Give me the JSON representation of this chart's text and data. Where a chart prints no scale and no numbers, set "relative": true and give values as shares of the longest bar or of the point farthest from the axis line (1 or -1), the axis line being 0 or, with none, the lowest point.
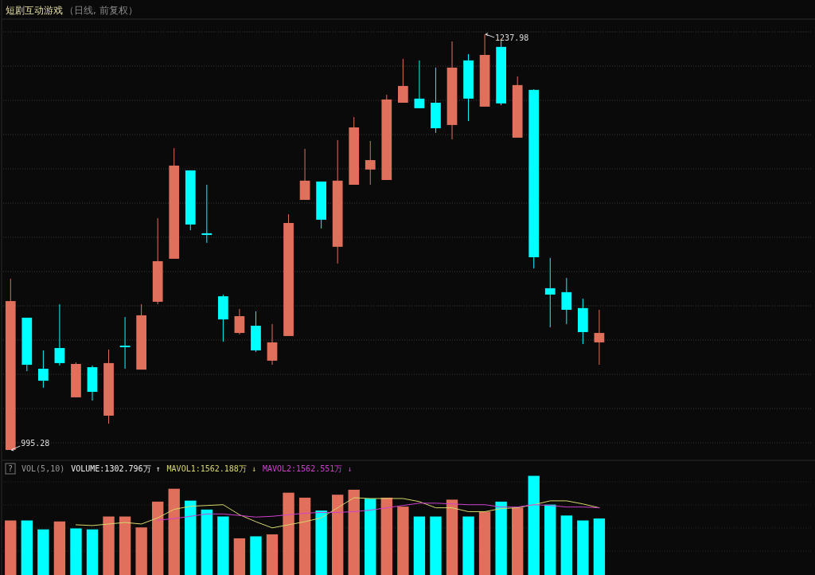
{
  "chart_data": [
    {
      "type": "candlestick",
      "title": "短剧互动游戏",
      "subtitle": "（日线, 前复权）",
      "grid": true,
      "categories": [
        null,
        null,
        null,
        null,
        null,
        null,
        null,
        null,
        null,
        null,
        null,
        null,
        null,
        null,
        null,
        null,
        null,
        null,
        null,
        null,
        null,
        null,
        null,
        null,
        null,
        null,
        null,
        null,
        null,
        null,
        null,
        null,
        null,
        null,
        null,
        null,
        null
      ],
      "ohlc": [
        [
          995.28,
          1095.3,
          995.28,
          1082.2
        ],
        [
          1072.5,
          1072.5,
          1041.3,
          1045.0
        ],
        [
          1042.7,
          1053.4,
          1031.6,
          1035.7
        ],
        [
          1054.8,
          1080.4,
          1044.6,
          1046.0
        ],
        [
          1026.0,
          1046.4,
          1026.0,
          1045.5
        ],
        [
          1043.6,
          1044.6,
          1024.1,
          1029.2
        ],
        [
          1015.3,
          1053.9,
          1010.6,
          1046.0
        ],
        [
          1056.2,
          1072.9,
          1042.7,
          1055.3
        ],
        [
          1042.2,
          1080.4,
          1042.2,
          1073.9
        ],
        [
          1081.8,
          1130.6,
          1080.4,
          1105.5
        ],
        [
          1106.9,
          1171.5,
          1106.9,
          1161.3
        ],
        [
          1158.5,
          1158.5,
          1123.6,
          1126.9
        ],
        [
          1121.8,
          1150.1,
          1116.2,
          1120.8
        ],
        [
          1085.0,
          1086.0,
          1058.5,
          1071.5
        ],
        [
          1063.6,
          1077.6,
          1062.7,
          1073.4
        ],
        [
          1067.8,
          1076.2,
          1052.5,
          1053.4
        ],
        [
          1047.4,
          1068.8,
          1045.0,
          1058.1
        ],
        [
          1061.8,
          1132.9,
          1061.8,
          1127.8
        ],
        [
          1141.3,
          1171.1,
          1141.3,
          1152.5
        ],
        [
          1152.0,
          1152.0,
          1124.6,
          1129.7
        ],
        [
          1113.9,
          1176.2,
          1104.1,
          1152.5
        ],
        [
          1150.1,
          1189.6,
          1150.1,
          1183.6
        ],
        [
          1159.0,
          1175.7,
          1150.1,
          1164.5
        ],
        [
          1152.9,
          1202.7,
          1152.9,
          1199.9
        ],
        [
          1198.0,
          1223.6,
          1198.0,
          1207.8
        ],
        [
          1200.4,
          1222.7,
          1194.8,
          1194.8
        ],
        [
          1198.0,
          1218.5,
          1180.4,
          1183.1
        ],
        [
          1185.0,
          1233.8,
          1176.6,
          1218.5
        ],
        [
          1222.7,
          1226.4,
          1187.3,
          1200.4
        ],
        [
          1195.7,
          1237.98,
          1195.7,
          1225.9
        ],
        [
          1230.6,
          1234.8,
          1196.6,
          1197.6
        ],
        [
          1177.6,
          1213.4,
          1177.6,
          1208.3
        ],
        [
          1205.5,
          1205.9,
          1101.3,
          1107.8
        ],
        [
          1089.7,
          1107.4,
          1066.9,
          1086.0
        ],
        [
          1087.4,
          1095.7,
          1068.8,
          1077.1
        ],
        [
          1078.1,
          1083.6,
          1057.1,
          1064.1
        ],
        [
          1058.1,
          1077.1,
          1045.0,
          1063.6
        ]
      ],
      "colors": [
        "#e0705c",
        "#00ffff",
        "#00ffff",
        "#00ffff",
        "#e0705c",
        "#00ffff",
        "#e0705c",
        "#00ffff",
        "#e0705c",
        "#e0705c",
        "#e0705c",
        "#00ffff",
        "#00ffff",
        "#00ffff",
        "#e0705c",
        "#00ffff",
        "#e0705c",
        "#e0705c",
        "#e0705c",
        "#00ffff",
        "#e0705c",
        "#e0705c",
        "#e0705c",
        "#e0705c",
        "#e0705c",
        "#00ffff",
        "#00ffff",
        "#e0705c",
        "#00ffff",
        "#e0705c",
        "#00ffff",
        "#e0705c",
        "#00ffff",
        "#00ffff",
        "#00ffff",
        "#00ffff",
        "#e0705c"
      ],
      "annotations": [
        "1237.98",
        "995.28"
      ]
    },
    {
      "type": "bar",
      "relative": true,
      "grid": true,
      "categories": [
        null,
        null,
        null,
        null,
        null,
        null,
        null,
        null,
        null,
        null,
        null,
        null,
        null,
        null,
        null,
        null,
        null,
        null,
        null,
        null,
        null,
        null,
        null,
        null,
        null,
        null,
        null,
        null,
        null,
        null,
        null,
        null,
        null,
        null,
        null,
        null,
        null
      ],
      "annotations": [
        "?",
        "VOL(5,10)",
        "VOLUME:1302.796万 ↑"
      ],
      "series": [
        {
          "type": "bar",
          "values": [
            0.55,
            0.55,
            0.46,
            0.54,
            0.47,
            0.46,
            0.59,
            0.59,
            0.48,
            0.74,
            0.87,
            0.75,
            0.66,
            0.59,
            0.37,
            0.39,
            0.41,
            0.83,
            0.78,
            0.65,
            0.81,
            0.86,
            0.77,
            0.78,
            0.69,
            0.59,
            0.59,
            0.76,
            0.59,
            0.64,
            0.74,
            0.68,
            1,
            0.71,
            0.6,
            0.55,
            0.57
          ],
          "colors": [
            "#e0705c",
            "#00ffff",
            "#00ffff",
            "#e0705c",
            "#00ffff",
            "#00ffff",
            "#e0705c",
            "#e0705c",
            "#e0705c",
            "#e0705c",
            "#e0705c",
            "#00ffff",
            "#00ffff",
            "#00ffff",
            "#e0705c",
            "#00ffff",
            "#e0705c",
            "#e0705c",
            "#e0705c",
            "#00ffff",
            "#e0705c",
            "#e0705c",
            "#00ffff",
            "#e0705c",
            "#e0705c",
            "#00ffff",
            "#00ffff",
            "#e0705c",
            "#00ffff",
            "#e0705c",
            "#00ffff",
            "#e0705c",
            "#00ffff",
            "#00ffff",
            "#00ffff",
            "#00ffff",
            "#00ffff"
          ]
        }
      ]
    },
    {
      "type": "line",
      "relative": true,
      "categories": [
        null,
        null,
        null,
        null,
        null,
        null,
        null,
        null,
        null,
        null,
        null,
        null,
        null,
        null,
        null,
        null,
        null,
        null,
        null,
        null,
        null,
        null,
        null,
        null,
        null,
        null,
        null,
        null,
        null,
        null,
        null,
        null,
        null,
        null,
        null,
        null,
        null
      ],
      "series": [
        {
          "name": "MAVOL1:1562.188万 ↓",
          "color": "#d8d86c",
          "values": [
            null,
            null,
            null,
            null,
            0.65,
            0.64,
            0.66,
            0.68,
            0.66,
            0.74,
            0.85,
            0.89,
            0.9,
            0.91,
            0.78,
            0.69,
            0.61,
            0.65,
            0.69,
            0.74,
            0.87,
            1,
            0.99,
            0.99,
            0.99,
            0.95,
            0.87,
            0.87,
            0.82,
            0.82,
            0.86,
            0.87,
            0.91,
            0.96,
            0.96,
            0.92,
            0.87
          ]
        },
        {
          "name": "MAVOL2:1562.551万 ↓",
          "color": "#d040d0",
          "values": [
            null,
            null,
            null,
            null,
            null,
            null,
            null,
            null,
            null,
            0.71,
            0.73,
            0.76,
            0.79,
            0.79,
            0.77,
            0.75,
            0.76,
            0.78,
            0.8,
            0.81,
            0.81,
            0.82,
            0.84,
            0.87,
            0.9,
            0.93,
            0.93,
            0.92,
            0.91,
            0.91,
            0.88,
            0.88,
            0.91,
            0.9,
            0.88,
            0.88,
            0.87
          ]
        }
      ]
    }
  ]
}
